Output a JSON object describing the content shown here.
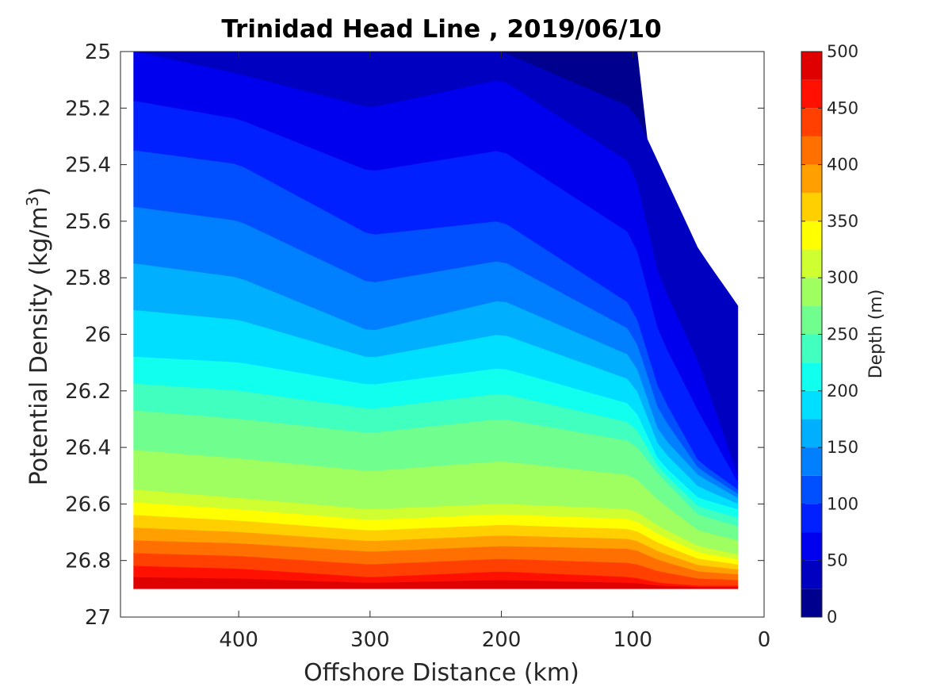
{
  "chart_data": {
    "type": "contour",
    "title": "Trinidad Head Line , 2019/06/10",
    "xlabel": "Offshore Distance (km)",
    "ylabel_main": "Potential Density (kg/m",
    "ylabel_sup": "3",
    "ylabel_close": ")",
    "colorbar_label": "Depth (m)",
    "xlim": [
      490,
      0
    ],
    "ylim": [
      25,
      27
    ],
    "x_reversed": true,
    "y_reversed": true,
    "xticks": [
      400,
      300,
      200,
      100,
      0
    ],
    "xtick_labels": [
      "400",
      "300",
      "200",
      "100",
      "0"
    ],
    "yticks": [
      25,
      25.2,
      25.4,
      25.6,
      25.8,
      26,
      26.2,
      26.4,
      26.6,
      26.8,
      27
    ],
    "ytick_labels": [
      "25",
      "25.2",
      "25.4",
      "25.6",
      "25.8",
      "26",
      "26.2",
      "26.4",
      "26.6",
      "26.8",
      "27"
    ],
    "color_range": [
      0,
      500
    ],
    "color_levels": [
      0,
      25,
      50,
      75,
      100,
      125,
      150,
      175,
      200,
      225,
      250,
      275,
      300,
      325,
      350,
      375,
      400,
      425,
      450,
      475,
      500
    ],
    "cbar_ticks": [
      0,
      50,
      100,
      150,
      200,
      250,
      300,
      350,
      400,
      450,
      500
    ],
    "cbar_tick_labels": [
      "0",
      "50",
      "100",
      "150",
      "200",
      "250",
      "300",
      "350",
      "400",
      "450",
      "500"
    ],
    "band_colors": [
      "#00008f",
      "#0000c0",
      "#0000ef",
      "#0020ff",
      "#0050ff",
      "#0080ff",
      "#00b0ff",
      "#00dfff",
      "#10ffef",
      "#40ffbf",
      "#70ff8f",
      "#9fff60",
      "#cfff30",
      "#ffff00",
      "#ffcf00",
      "#ffa000",
      "#ff7000",
      "#ff4000",
      "#ff1000",
      "#df0000"
    ],
    "data_x_range": [
      480,
      20
    ],
    "data_bottom_density": 26.9,
    "contour_sample_x": [
      480,
      400,
      300,
      200,
      100,
      80,
      50,
      20
    ],
    "isobaths": [
      {
        "depth": 25,
        "density": [
          25.0,
          25.0,
          25.0,
          25.0,
          25.2,
          25.4,
          25.7,
          25.9
        ]
      },
      {
        "depth": 50,
        "density": [
          25.0,
          25.08,
          25.2,
          25.1,
          25.4,
          25.8,
          26.1,
          26.5
        ]
      },
      {
        "depth": 100,
        "density": [
          25.35,
          25.4,
          25.65,
          25.6,
          25.9,
          26.2,
          26.45,
          26.55
        ]
      },
      {
        "depth": 150,
        "density": [
          25.75,
          25.8,
          25.99,
          25.88,
          26.08,
          26.35,
          26.5,
          26.58
        ]
      },
      {
        "depth": 200,
        "density": [
          26.08,
          26.1,
          26.18,
          26.12,
          26.25,
          26.45,
          26.58,
          26.62
        ]
      },
      {
        "depth": 250,
        "density": [
          26.27,
          26.3,
          26.35,
          26.3,
          26.38,
          26.5,
          26.64,
          26.68
        ]
      },
      {
        "depth": 300,
        "density": [
          26.55,
          26.58,
          26.62,
          26.6,
          26.62,
          26.68,
          26.75,
          26.78
        ]
      },
      {
        "depth": 400,
        "density": [
          26.73,
          26.74,
          26.77,
          26.75,
          26.76,
          26.8,
          26.84,
          26.85
        ]
      },
      {
        "depth": 450,
        "density": [
          26.82,
          26.83,
          26.86,
          26.84,
          26.86,
          26.88,
          26.89,
          26.89
        ]
      }
    ]
  }
}
